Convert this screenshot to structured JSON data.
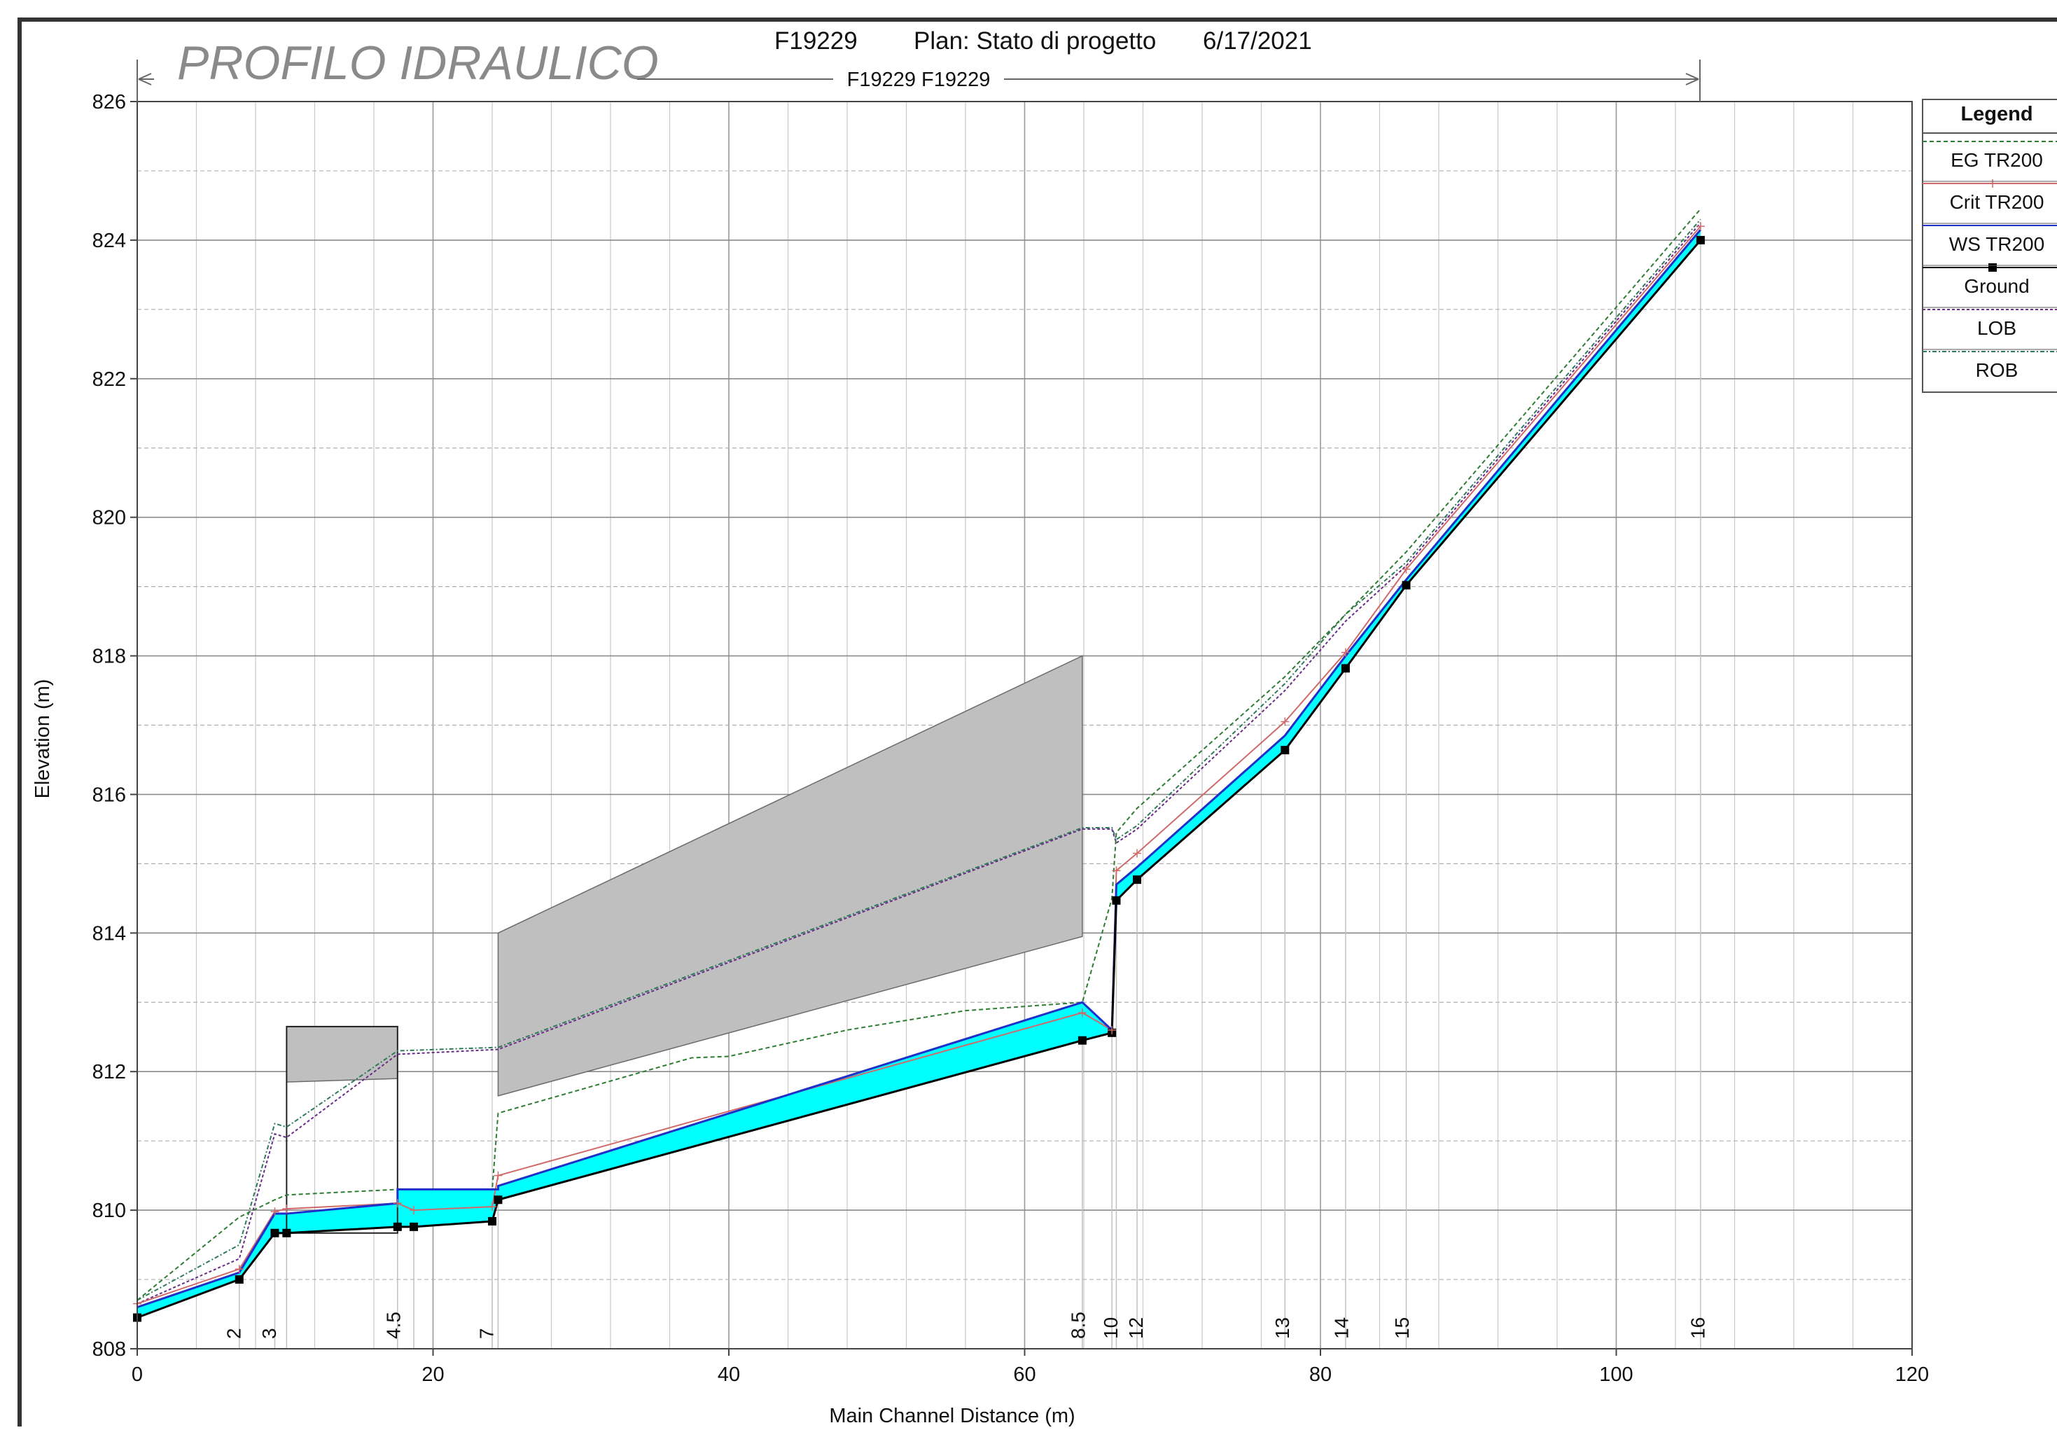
{
  "header": {
    "title": "PROFILO IDRAULICO",
    "project": "F19229",
    "plan": "Plan: Stato di progetto",
    "date": "6/17/2021",
    "reach": "F19229 F19229"
  },
  "legend": {
    "title": "Legend",
    "items": [
      {
        "label": "EG  TR200",
        "color": "#2e7d32",
        "dash": "6 4",
        "marker": ""
      },
      {
        "label": "Crit  TR200",
        "color": "#d06a6a",
        "dash": "",
        "marker": "plus"
      },
      {
        "label": "WS  TR200",
        "color": "#1f2fc9",
        "dash": "",
        "marker": ""
      },
      {
        "label": "Ground",
        "color": "#000000",
        "dash": "",
        "marker": "square"
      },
      {
        "label": "LOB",
        "color": "#6a2b8a",
        "dash": "4 3",
        "marker": ""
      },
      {
        "label": "ROB",
        "color": "#2d7a5a",
        "dash": "6 3 2 3",
        "marker": ""
      }
    ]
  },
  "chart_data": {
    "type": "line",
    "title": "F19229       Plan: Stato di progetto     6/17/2021",
    "xlabel": "Main Channel Distance (m)",
    "ylabel": "Elevation (m)",
    "xlim": [
      0,
      120
    ],
    "ylim": [
      808,
      826
    ],
    "xticks": [
      0,
      20,
      40,
      60,
      80,
      100,
      120
    ],
    "yticks": [
      808,
      810,
      812,
      814,
      816,
      818,
      820,
      822,
      824,
      826
    ],
    "grid": true,
    "legend_position": "right",
    "colors": {
      "water_fill": "#00ffff",
      "structure_fill": "#bfbfbf"
    },
    "section_labels": [
      {
        "label": "2",
        "x": 6.5
      },
      {
        "label": "3",
        "x": 8.9
      },
      {
        "label": "4.5",
        "x": 17.3
      },
      {
        "label": "7",
        "x": 23.6
      },
      {
        "label": "8.5",
        "x": 63.6
      },
      {
        "label": "10",
        "x": 65.8
      },
      {
        "label": "12",
        "x": 67.5
      },
      {
        "label": "13",
        "x": 77.4
      },
      {
        "label": "14",
        "x": 81.4
      },
      {
        "label": "15",
        "x": 85.5
      },
      {
        "label": "16",
        "x": 105.5
      }
    ],
    "section_lines_x": [
      0,
      6.9,
      9.3,
      10.1,
      17.6,
      18.7,
      24.0,
      24.4,
      63.9,
      65.9,
      66.2,
      67.6,
      77.6,
      81.7,
      85.8,
      105.7
    ],
    "series": [
      {
        "name": "Ground",
        "x": [
          0,
          6.9,
          9.3,
          10.1,
          17.6,
          18.7,
          24.0,
          24.4,
          63.9,
          65.9,
          66.2,
          67.6,
          77.6,
          81.7,
          85.8,
          105.7
        ],
        "y": [
          808.45,
          809.0,
          809.67,
          809.67,
          809.76,
          809.76,
          809.84,
          810.15,
          812.45,
          812.56,
          814.47,
          814.77,
          816.64,
          817.82,
          819.02,
          824.0
        ]
      },
      {
        "name": "WS  TR200",
        "x": [
          0,
          6.9,
          9.3,
          10.1,
          17.6,
          17.6,
          24.4,
          24.4,
          63.9,
          65.9,
          66.2,
          67.6,
          77.6,
          81.7,
          85.8,
          105.7
        ],
        "y": [
          808.6,
          809.1,
          809.95,
          809.95,
          810.1,
          810.3,
          810.3,
          810.35,
          813.0,
          812.6,
          814.7,
          814.95,
          816.85,
          818.0,
          819.1,
          824.15
        ]
      },
      {
        "name": "Crit  TR200",
        "x": [
          0,
          6.9,
          9.3,
          10.1,
          17.6,
          18.7,
          24.0,
          24.4,
          63.9,
          65.9,
          66.2,
          67.6,
          77.6,
          81.7,
          85.8,
          105.7
        ],
        "y": [
          808.65,
          809.15,
          809.98,
          810.02,
          810.1,
          810.0,
          810.05,
          810.5,
          812.85,
          812.6,
          814.9,
          815.15,
          817.05,
          818.05,
          819.25,
          824.2
        ]
      },
      {
        "name": "EG  TR200",
        "x": [
          0,
          6.9,
          9.3,
          10.1,
          17.6,
          18.7,
          24.0,
          24.4,
          37.5,
          40.0,
          48.0,
          56.0,
          63.9,
          65.9,
          66.2,
          67.6,
          77.6,
          81.7,
          85.8,
          105.7
        ],
        "y": [
          808.7,
          809.9,
          810.15,
          810.22,
          810.3,
          810.3,
          810.3,
          811.4,
          812.2,
          812.22,
          812.6,
          812.88,
          813.0,
          814.5,
          815.45,
          815.8,
          817.7,
          818.6,
          819.5,
          824.45
        ]
      },
      {
        "name": "LOB",
        "x": [
          0,
          6.9,
          9.3,
          10.1,
          17.6,
          24.4,
          63.9,
          65.9,
          66.2,
          67.6,
          77.6,
          81.7,
          85.8,
          105.7
        ],
        "y": [
          808.65,
          809.3,
          811.1,
          811.05,
          812.25,
          812.32,
          815.5,
          815.5,
          815.3,
          815.5,
          817.5,
          818.5,
          819.3,
          824.25
        ]
      },
      {
        "name": "ROB",
        "x": [
          0,
          6.9,
          9.3,
          10.1,
          17.6,
          24.4,
          63.9,
          65.9,
          66.2,
          67.6,
          77.6,
          81.7,
          85.8,
          105.7
        ],
        "y": [
          808.7,
          809.5,
          811.25,
          811.2,
          812.3,
          812.35,
          815.52,
          815.52,
          815.35,
          815.55,
          817.6,
          818.6,
          819.35,
          824.3
        ]
      }
    ],
    "structures": [
      {
        "points": [
          [
            10.1,
            812.65
          ],
          [
            17.6,
            812.65
          ],
          [
            17.6,
            811.9
          ],
          [
            10.1,
            811.85
          ]
        ],
        "outline_box": [
          [
            10.1,
            809.67
          ],
          [
            17.6,
            812.65
          ]
        ]
      },
      {
        "points": [
          [
            24.4,
            814.0
          ],
          [
            63.9,
            818.0
          ],
          [
            63.9,
            813.95
          ],
          [
            24.4,
            811.65
          ]
        ]
      }
    ]
  }
}
